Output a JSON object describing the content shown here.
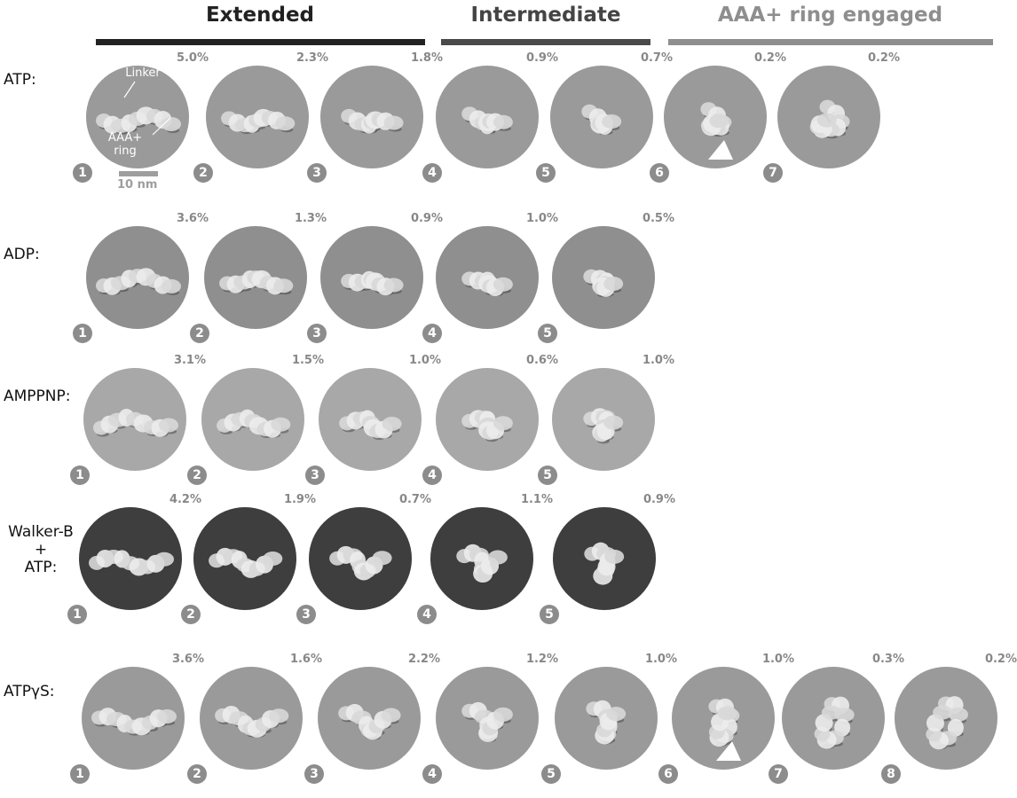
{
  "headers": [
    {
      "label": "Extended",
      "color": "#222222"
    },
    {
      "label": "Intermediate",
      "color": "#444444"
    },
    {
      "label": "AAA+ ring engaged",
      "color": "#8e8e8e"
    }
  ],
  "bar_colors": [
    "#222222",
    "#4a4a4a",
    "#8e8e8e"
  ],
  "annotations": {
    "linker": "Linker",
    "aaa": "AAA+\nring",
    "scale": "10 nm"
  },
  "rows": [
    {
      "label": "ATP:",
      "bg": "#9a9a9a",
      "percents": [
        "5.0%",
        "2.3%",
        "1.8%",
        "0.9%",
        "0.7%",
        "0.2%",
        "0.2%"
      ],
      "numbers": [
        "1",
        "2",
        "3",
        "4",
        "5",
        "6",
        "7"
      ],
      "arrow_index": 5
    },
    {
      "label": "ADP:",
      "bg": "#8f8f8f",
      "percents": [
        "3.6%",
        "1.3%",
        "0.9%",
        "1.0%",
        "0.5%"
      ],
      "numbers": [
        "1",
        "2",
        "3",
        "4",
        "5"
      ]
    },
    {
      "label": "AMPPNP:",
      "bg": "#a8a8a8",
      "percents": [
        "3.1%",
        "1.5%",
        "1.0%",
        "0.6%",
        "1.0%"
      ],
      "numbers": [
        "1",
        "2",
        "3",
        "4",
        "5"
      ]
    },
    {
      "label": "Walker-B\n+\nATP:",
      "bg": "#3e3e3e",
      "percents": [
        "4.2%",
        "1.9%",
        "0.7%",
        "1.1%",
        "0.9%"
      ],
      "numbers": [
        "1",
        "2",
        "3",
        "4",
        "5"
      ]
    },
    {
      "label": "ATPγS:",
      "bg": "#9a9a9a",
      "percents": [
        "3.6%",
        "1.6%",
        "2.2%",
        "1.2%",
        "1.0%",
        "1.0%",
        "0.3%",
        "0.2%"
      ],
      "numbers": [
        "1",
        "2",
        "3",
        "4",
        "5",
        "6",
        "7",
        "8"
      ],
      "arrow_index": 5
    }
  ]
}
